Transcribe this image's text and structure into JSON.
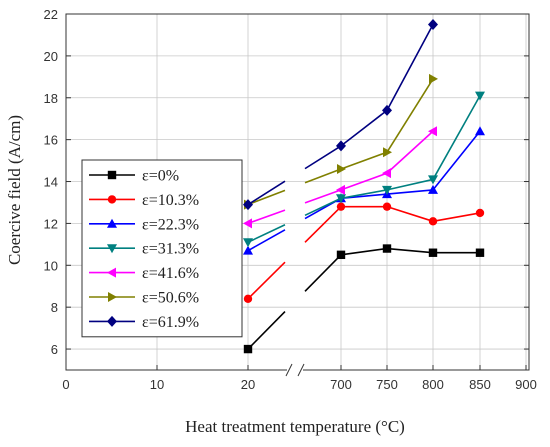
{
  "chart_data": {
    "type": "line",
    "xlabel": "Heat treatment temperature (°C)",
    "ylabel": "Coercive field (A/cm)",
    "x_axis_break": "//",
    "xticks": [
      "0",
      "10",
      "20",
      "700",
      "750",
      "800",
      "850",
      "900"
    ],
    "x": [
      20,
      700,
      750,
      800,
      850
    ],
    "ylim": [
      5,
      22
    ],
    "yticks": [
      6,
      8,
      10,
      12,
      14,
      16,
      18,
      20,
      22
    ],
    "grid": true,
    "legend_position": "left",
    "series": [
      {
        "name": "ε=0%",
        "color": "#000000",
        "marker": "square",
        "values": [
          6.0,
          10.5,
          10.8,
          10.6,
          10.6
        ]
      },
      {
        "name": "ε=10.3%",
        "color": "#ff0000",
        "marker": "circle",
        "values": [
          8.4,
          12.8,
          12.8,
          12.1,
          12.5
        ]
      },
      {
        "name": "ε=22.3%",
        "color": "#0000ff",
        "marker": "triangle-up",
        "values": [
          10.7,
          13.2,
          13.4,
          13.6,
          16.4
        ]
      },
      {
        "name": "ε=31.3%",
        "color": "#008080",
        "marker": "triangle-down",
        "values": [
          11.1,
          13.2,
          13.6,
          14.1,
          18.1
        ]
      },
      {
        "name": "ε=41.6%",
        "color": "#ff00ff",
        "marker": "triangle-left",
        "values": [
          12.0,
          13.6,
          14.4,
          16.4,
          null
        ]
      },
      {
        "name": "ε=50.6%",
        "color": "#808000",
        "marker": "triangle-right",
        "values": [
          12.9,
          14.6,
          15.4,
          18.9,
          null
        ]
      },
      {
        "name": "ε=61.9%",
        "color": "#000080",
        "marker": "diamond",
        "values": [
          12.9,
          15.7,
          17.4,
          21.5,
          null
        ]
      }
    ]
  }
}
